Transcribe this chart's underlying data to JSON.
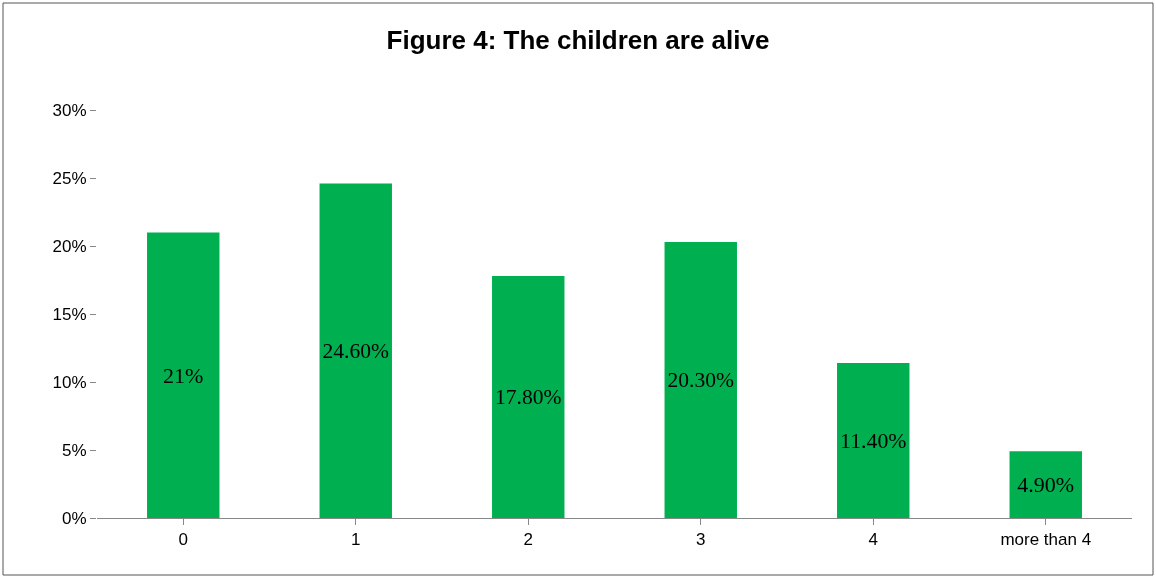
{
  "chart_data": {
    "type": "bar",
    "title": "Figure 4: The children are alive",
    "categories": [
      "0",
      "1",
      "2",
      "3",
      "4",
      "more than 4"
    ],
    "values": [
      21,
      24.6,
      17.8,
      20.3,
      11.4,
      4.9
    ],
    "value_labels": [
      "21%",
      "24.60%",
      "17.80%",
      "20.30%",
      "11.40%",
      "4.90%"
    ],
    "color": "#00b050",
    "ylim": [
      0,
      30
    ],
    "yticks": [
      {
        "value": 0,
        "label": "0%"
      },
      {
        "value": 5,
        "label": "5%"
      },
      {
        "value": 10,
        "label": "10%"
      },
      {
        "value": 15,
        "label": "15%"
      },
      {
        "value": 20,
        "label": "20%"
      },
      {
        "value": 25,
        "label": "25%"
      },
      {
        "value": 30,
        "label": "30%"
      }
    ],
    "legend": false
  }
}
